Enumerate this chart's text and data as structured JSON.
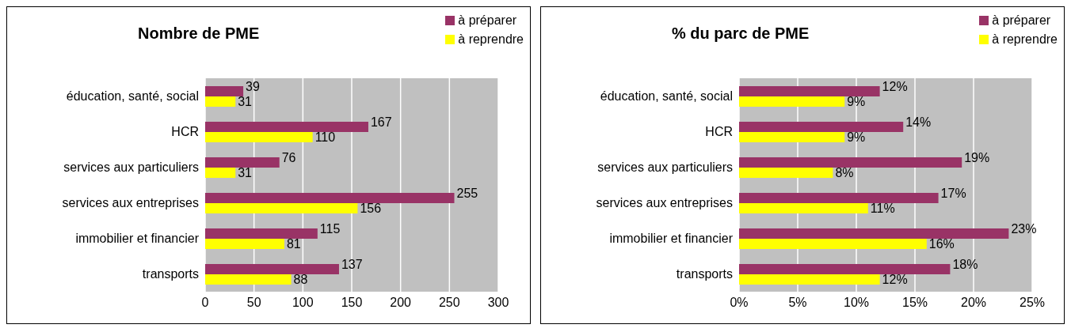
{
  "chart_data": [
    {
      "type": "bar",
      "orientation": "horizontal",
      "title": "Nombre de PME",
      "categories": [
        "éducation, santé, social",
        "HCR",
        "services aux particuliers",
        "services aux entreprises",
        "immobilier et financier",
        "transports"
      ],
      "series": [
        {
          "name": "à préparer",
          "color": "#993366",
          "values": [
            39,
            167,
            76,
            255,
            115,
            137
          ]
        },
        {
          "name": "à reprendre",
          "color": "#ffff00",
          "values": [
            31,
            110,
            31,
            156,
            81,
            88
          ]
        }
      ],
      "xlim": [
        0,
        300
      ],
      "xticks": [
        0,
        50,
        100,
        150,
        200,
        250,
        300
      ],
      "grid": "x",
      "legend": "top right",
      "data_labels": true
    },
    {
      "type": "bar",
      "orientation": "horizontal",
      "title": "% du parc de PME",
      "categories": [
        "éducation, santé, social",
        "HCR",
        "services aux particuliers",
        "services aux entreprises",
        "immobilier et financier",
        "transports"
      ],
      "series": [
        {
          "name": "à préparer",
          "color": "#993366",
          "values": [
            12,
            14,
            19,
            17,
            23,
            18
          ],
          "value_labels": [
            "12%",
            "14%",
            "19%",
            "17%",
            "23%",
            "18%"
          ]
        },
        {
          "name": "à reprendre",
          "color": "#ffff00",
          "values": [
            9,
            9,
            8,
            11,
            16,
            12
          ],
          "value_labels": [
            "9%",
            "9%",
            "8%",
            "11%",
            "16%",
            "12%"
          ]
        }
      ],
      "xlim": [
        0,
        25
      ],
      "xticks": [
        {
          "value": 0,
          "label": "0%"
        },
        {
          "value": 5,
          "label": "5%"
        },
        {
          "value": 10,
          "label": "10%"
        },
        {
          "value": 15,
          "label": "15%"
        },
        {
          "value": 20,
          "label": "20%"
        },
        {
          "value": 25,
          "label": "25%"
        }
      ],
      "grid": "x",
      "legend": "top right"
    }
  ]
}
